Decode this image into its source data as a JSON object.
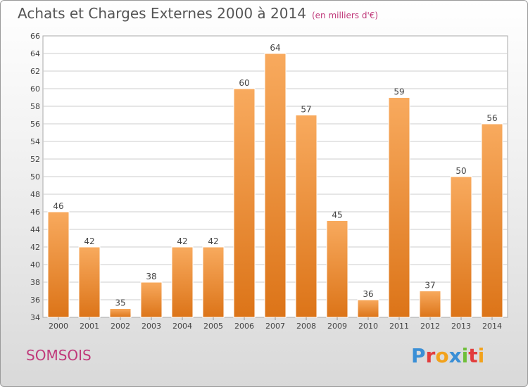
{
  "title": "Achats et Charges Externes 2000 à 2014",
  "subtitle": "(en milliers d'€)",
  "location": "SOMSOIS",
  "logo": {
    "letters": [
      "P",
      "r",
      "o",
      "x",
      "i",
      "t",
      "i"
    ],
    "colors": [
      "#3a8fd6",
      "#e23d3d",
      "#f2a21c",
      "#3a8fd6",
      "#6fbf3a",
      "#e23d3d",
      "#f2a21c"
    ]
  },
  "colors": {
    "bar_light": "#f7a75a",
    "bar_dark": "#e07a1e",
    "grid": "#cccccc"
  },
  "chart_data": {
    "type": "bar",
    "title": "Achats et Charges Externes 2000 à 2014",
    "subtitle": "(en milliers d'€)",
    "categories": [
      "2000",
      "2001",
      "2002",
      "2003",
      "2004",
      "2005",
      "2006",
      "2007",
      "2008",
      "2009",
      "2010",
      "2011",
      "2012",
      "2013",
      "2014"
    ],
    "values": [
      46,
      42,
      35,
      38,
      42,
      42,
      60,
      64,
      57,
      45,
      36,
      59,
      37,
      50,
      56
    ],
    "ylim": [
      34,
      66
    ],
    "yticks": [
      34,
      36,
      38,
      40,
      42,
      44,
      46,
      48,
      50,
      52,
      54,
      56,
      58,
      60,
      62,
      64,
      66
    ],
    "grid": true,
    "xlabel": "",
    "ylabel": ""
  }
}
